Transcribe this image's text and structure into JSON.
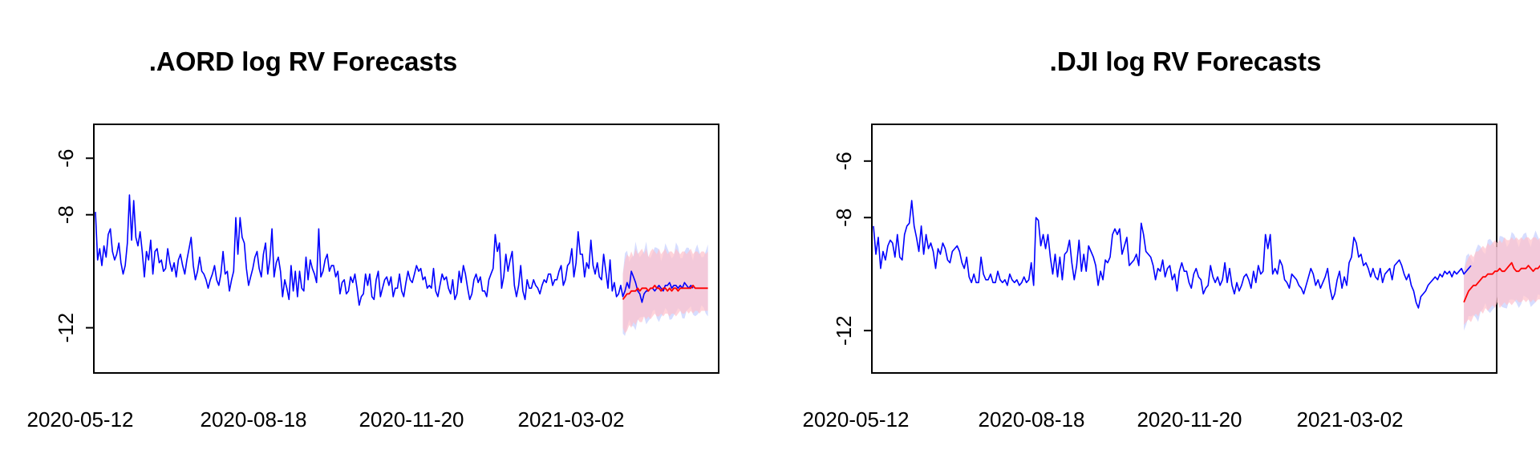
{
  "colors": {
    "observed": "#0000ff",
    "forecast_mean": "#ff0000",
    "band_forecast": "#ffc0cb",
    "band_alt": "#c8d2ff"
  },
  "chart_data": [
    {
      "type": "line",
      "title": ".AORD log RV Forecasts",
      "xlabel": "",
      "ylabel": "",
      "x_tick_labels": [
        "2020-05-12",
        "2020-08-18",
        "2020-11-20",
        "2021-03-02"
      ],
      "y_ticks": [
        -6,
        -8,
        -12
      ],
      "y_tick_labels": [
        "-6",
        "-8",
        "-12"
      ],
      "ylim": [
        -13.6,
        -4.8
      ],
      "grid": false,
      "series": [
        {
          "role": "observed",
          "values": [
            -7.9,
            -9.6,
            -9.2,
            -9.8,
            -9.1,
            -9.5,
            -8.7,
            -8.5,
            -9.3,
            -9.6,
            -9.4,
            -9.0,
            -9.7,
            -10.1,
            -9.8,
            -9.0,
            -7.3,
            -8.9,
            -7.5,
            -8.8,
            -9.1,
            -8.6,
            -9.3,
            -10.2,
            -9.3,
            -9.6,
            -8.9,
            -10.1,
            -9.3,
            -9.2,
            -9.7,
            -9.6,
            -10.0,
            -9.9,
            -9.2,
            -9.7,
            -10.0,
            -9.7,
            -10.2,
            -9.6,
            -9.4,
            -9.8,
            -10.1,
            -9.6,
            -9.2,
            -8.8,
            -9.8,
            -10.3,
            -10.0,
            -9.5,
            -10.0,
            -10.1,
            -10.3,
            -10.6,
            -10.3,
            -10.1,
            -9.8,
            -10.3,
            -10.5,
            -10.1,
            -9.3,
            -10.1,
            -10.0,
            -10.7,
            -10.3,
            -10.0,
            -8.1,
            -9.4,
            -8.1,
            -8.8,
            -9.0,
            -9.9,
            -10.5,
            -10.2,
            -9.9,
            -9.5,
            -9.3,
            -9.9,
            -10.2,
            -9.4,
            -9.0,
            -10.1,
            -9.6,
            -8.5,
            -10.2,
            -9.7,
            -9.5,
            -10.0,
            -10.9,
            -10.3,
            -10.6,
            -11.0,
            -9.8,
            -10.7,
            -10.0,
            -10.9,
            -10.0,
            -10.6,
            -10.7,
            -9.5,
            -10.3,
            -9.6,
            -9.9,
            -10.1,
            -10.4,
            -8.5,
            -10.2,
            -10.0,
            -9.6,
            -9.4,
            -10.0,
            -9.8,
            -9.8,
            -10.2,
            -10.0,
            -10.8,
            -10.4,
            -10.3,
            -10.8,
            -10.7,
            -10.2,
            -10.4,
            -10.1,
            -10.6,
            -11.2,
            -10.9,
            -10.8,
            -10.1,
            -10.5,
            -10.1,
            -10.9,
            -11.0,
            -10.3,
            -10.0,
            -10.9,
            -10.6,
            -10.3,
            -10.2,
            -10.5,
            -10.2,
            -10.9,
            -10.6,
            -10.6,
            -10.1,
            -10.7,
            -10.9,
            -10.4,
            -10.0,
            -10.3,
            -10.4,
            -10.1,
            -9.8,
            -10.0,
            -9.9,
            -10.3,
            -10.2,
            -10.6,
            -10.5,
            -10.6,
            -9.9,
            -10.7,
            -10.9,
            -10.5,
            -10.1,
            -10.3,
            -10.2,
            -10.6,
            -10.8,
            -10.3,
            -11.0,
            -10.8,
            -10.0,
            -10.4,
            -9.8,
            -10.1,
            -10.6,
            -11.0,
            -10.8,
            -10.3,
            -10.1,
            -10.4,
            -10.2,
            -10.7,
            -10.7,
            -10.9,
            -10.3,
            -10.1,
            -9.9,
            -8.7,
            -9.3,
            -9.0,
            -10.6,
            -10.2,
            -9.4,
            -10.0,
            -9.6,
            -9.3,
            -10.5,
            -10.9,
            -10.5,
            -9.8,
            -10.7,
            -11.0,
            -10.3,
            -10.6,
            -10.6,
            -10.3,
            -10.5,
            -10.6,
            -10.8,
            -10.5,
            -10.3,
            -10.4,
            -10.1,
            -10.1,
            -10.5,
            -10.3,
            -10.3,
            -10.0,
            -9.8,
            -10.5,
            -10.3,
            -9.8,
            -9.7,
            -9.2,
            -10.2,
            -9.7,
            -8.6,
            -9.4,
            -9.4,
            -10.2,
            -9.7,
            -9.9,
            -8.9,
            -9.8,
            -10.1,
            -9.7,
            -10.2,
            -10.3,
            -9.4,
            -10.0,
            -10.6,
            -9.6,
            -10.7,
            -10.4,
            -10.9,
            -10.8,
            -10.5,
            -10.9,
            -10.7,
            -10.4,
            -10.6,
            -10.0,
            -10.2,
            -10.4,
            -10.7,
            -10.8,
            -11.1,
            -10.8,
            -10.7,
            -10.7,
            -10.6,
            -10.6,
            -10.7,
            -10.6,
            -10.5,
            -10.6,
            -10.7,
            -10.5,
            -10.5,
            -10.4,
            -10.6,
            -10.5,
            -10.5,
            -10.6,
            -10.5,
            -10.6,
            -10.4,
            -10.5,
            -10.6,
            -10.5,
            -10.6
          ]
        },
        {
          "role": "forecast",
          "start_index": 248,
          "values": [
            -11.0,
            -10.9,
            -10.8,
            -10.8,
            -10.7,
            -10.7,
            -10.7,
            -10.6,
            -10.7,
            -10.6,
            -10.6,
            -10.6,
            -10.7,
            -10.6,
            -10.6,
            -10.5,
            -10.6,
            -10.6,
            -10.7,
            -10.6,
            -10.6,
            -10.7,
            -10.6,
            -10.7,
            -10.6,
            -10.6,
            -10.7,
            -10.6,
            -10.6,
            -10.6,
            -10.6,
            -10.6,
            -10.6,
            -10.5,
            -10.6,
            -10.6,
            -10.6,
            -10.6,
            -10.6,
            -10.6,
            -10.6
          ],
          "lower": [
            -12.0,
            -12.2,
            -12.1,
            -11.9,
            -12.0,
            -11.8,
            -11.9,
            -11.7,
            -11.8,
            -11.8,
            -11.6,
            -11.7,
            -11.6,
            -11.7,
            -11.6,
            -11.5,
            -11.6,
            -11.6,
            -11.5,
            -11.6,
            -11.5,
            -11.5,
            -11.6,
            -11.5,
            -11.5,
            -11.6,
            -11.5,
            -11.4,
            -11.5,
            -11.5,
            -11.4,
            -11.5,
            -11.4,
            -11.5,
            -11.4,
            -11.4,
            -11.5,
            -11.4,
            -11.4,
            -11.4,
            -11.4
          ],
          "upper": [
            -10.1,
            -9.6,
            -9.4,
            -9.5,
            -9.3,
            -9.5,
            -9.2,
            -9.4,
            -9.3,
            -9.2,
            -9.4,
            -9.2,
            -9.5,
            -9.3,
            -9.2,
            -9.3,
            -9.4,
            -9.2,
            -9.4,
            -9.3,
            -9.2,
            -9.4,
            -9.3,
            -9.3,
            -9.4,
            -9.2,
            -9.3,
            -9.4,
            -9.3,
            -9.3,
            -9.4,
            -9.3,
            -9.2,
            -9.4,
            -9.3,
            -9.3,
            -9.4,
            -9.3,
            -9.3,
            -9.4,
            -9.3
          ]
        }
      ]
    },
    {
      "type": "line",
      "title": ".DJI log RV Forecasts",
      "xlabel": "",
      "ylabel": "",
      "x_tick_labels": [
        "2020-05-12",
        "2020-08-18",
        "2020-11-20",
        "2021-03-02"
      ],
      "y_ticks": [
        -6,
        -8,
        -12
      ],
      "y_tick_labels": [
        "-6",
        "-8",
        "-12"
      ],
      "ylim": [
        -13.5,
        -4.7
      ],
      "grid": false,
      "series": [
        {
          "role": "observed",
          "values": [
            -8.3,
            -9.3,
            -8.7,
            -9.8,
            -9.2,
            -9.5,
            -9.0,
            -8.8,
            -8.9,
            -9.4,
            -8.6,
            -9.4,
            -9.5,
            -8.6,
            -8.3,
            -8.2,
            -7.4,
            -8.3,
            -8.7,
            -9.2,
            -8.3,
            -9.3,
            -8.6,
            -9.1,
            -8.9,
            -9.2,
            -9.8,
            -9.1,
            -9.3,
            -8.9,
            -9.1,
            -9.5,
            -9.6,
            -9.2,
            -9.1,
            -9.0,
            -9.2,
            -9.6,
            -9.8,
            -9.4,
            -10.1,
            -10.3,
            -10.0,
            -10.3,
            -10.3,
            -9.4,
            -10.0,
            -10.2,
            -10.2,
            -10.0,
            -10.3,
            -10.3,
            -9.9,
            -10.2,
            -10.3,
            -10.2,
            -10.4,
            -10.0,
            -10.2,
            -10.3,
            -10.2,
            -10.4,
            -10.3,
            -10.1,
            -10.3,
            -10.2,
            -9.6,
            -10.4,
            -8.0,
            -8.1,
            -9.0,
            -8.6,
            -9.1,
            -8.6,
            -9.4,
            -10.0,
            -9.3,
            -10.1,
            -9.4,
            -10.2,
            -9.3,
            -9.2,
            -8.8,
            -9.6,
            -10.2,
            -9.7,
            -8.8,
            -9.9,
            -9.3,
            -9.9,
            -9.0,
            -9.2,
            -9.4,
            -9.7,
            -10.4,
            -9.9,
            -10.2,
            -9.5,
            -9.6,
            -9.4,
            -8.6,
            -8.4,
            -8.6,
            -8.4,
            -9.3,
            -9.0,
            -8.7,
            -9.7,
            -9.6,
            -9.5,
            -9.3,
            -9.7,
            -8.2,
            -8.6,
            -9.2,
            -9.3,
            -9.4,
            -9.7,
            -10.2,
            -9.8,
            -9.9,
            -9.5,
            -10.1,
            -9.8,
            -9.7,
            -10.2,
            -10.0,
            -10.6,
            -9.9,
            -9.6,
            -9.9,
            -9.9,
            -10.3,
            -10.5,
            -10.0,
            -9.8,
            -10.1,
            -10.2,
            -10.7,
            -10.5,
            -10.4,
            -9.7,
            -10.1,
            -10.3,
            -10.1,
            -10.4,
            -10.2,
            -9.6,
            -10.3,
            -9.8,
            -10.4,
            -10.7,
            -10.3,
            -10.6,
            -10.4,
            -10.1,
            -10.0,
            -10.2,
            -10.5,
            -9.9,
            -10.3,
            -9.7,
            -10.0,
            -9.9,
            -8.6,
            -9.1,
            -8.6,
            -10.0,
            -9.8,
            -10.0,
            -9.5,
            -9.7,
            -10.2,
            -10.3,
            -10.5,
            -10.0,
            -10.1,
            -10.2,
            -10.4,
            -10.5,
            -10.7,
            -10.4,
            -10.1,
            -9.8,
            -10.0,
            -10.4,
            -10.2,
            -10.5,
            -10.3,
            -10.1,
            -9.8,
            -10.5,
            -10.9,
            -10.7,
            -10.2,
            -9.9,
            -10.5,
            -10.1,
            -10.4,
            -9.6,
            -9.4,
            -8.7,
            -8.9,
            -9.4,
            -9.3,
            -9.7,
            -9.6,
            -9.8,
            -10.1,
            -9.8,
            -10.1,
            -10.2,
            -9.8,
            -10.3,
            -10.0,
            -9.9,
            -9.8,
            -10.2,
            -9.7,
            -9.6,
            -9.5,
            -9.7,
            -10.0,
            -10.2,
            -10.0,
            -10.4,
            -10.6,
            -11.0,
            -11.2,
            -10.8,
            -10.7,
            -10.6,
            -10.4,
            -10.3,
            -10.2,
            -10.1,
            -10.2,
            -10.0,
            -10.1,
            -9.9,
            -10.0,
            -9.9,
            -10.1,
            -9.9,
            -10.0,
            -9.9,
            -9.8,
            -10.0,
            -9.9,
            -9.8,
            -9.7
          ]
        },
        {
          "role": "forecast",
          "start_index": 247,
          "values": [
            -11.0,
            -10.8,
            -10.6,
            -10.5,
            -10.4,
            -10.4,
            -10.3,
            -10.2,
            -10.1,
            -10.1,
            -10.0,
            -10.0,
            -10.0,
            -9.9,
            -9.9,
            -9.8,
            -9.9,
            -9.9,
            -9.8,
            -9.7,
            -9.6,
            -9.8,
            -9.9,
            -9.9,
            -9.8,
            -9.8,
            -9.8,
            -9.7,
            -9.8,
            -9.9,
            -9.8,
            -9.8,
            -9.7,
            -9.8,
            -9.8,
            -9.8,
            -9.7,
            -9.7,
            -9.8,
            -9.7,
            -9.7,
            -9.7
          ],
          "lower": [
            -11.8,
            -11.7,
            -11.6,
            -11.7,
            -11.5,
            -11.4,
            -11.5,
            -11.3,
            -11.4,
            -11.2,
            -11.3,
            -11.2,
            -11.1,
            -11.2,
            -11.0,
            -11.2,
            -11.1,
            -11.0,
            -11.1,
            -11.0,
            -11.1,
            -11.0,
            -10.9,
            -11.0,
            -11.0,
            -10.9,
            -11.0,
            -10.9,
            -11.0,
            -10.9,
            -11.0,
            -10.9,
            -10.9,
            -11.0,
            -10.9,
            -10.9,
            -11.0,
            -10.9,
            -10.9,
            -11.0,
            -10.9,
            -10.9
          ],
          "upper": [
            -9.9,
            -9.6,
            -9.4,
            -9.3,
            -9.4,
            -9.2,
            -9.2,
            -9.1,
            -9.0,
            -9.1,
            -8.9,
            -9.0,
            -8.9,
            -8.8,
            -8.9,
            -8.8,
            -8.9,
            -8.7,
            -8.8,
            -8.8,
            -8.7,
            -8.8,
            -8.7,
            -8.8,
            -8.7,
            -8.8,
            -8.7,
            -8.7,
            -8.8,
            -8.7,
            -8.7,
            -8.8,
            -8.7,
            -8.7,
            -8.8,
            -8.7,
            -8.7,
            -8.8,
            -8.7,
            -8.7,
            -8.8,
            -8.7
          ]
        }
      ]
    }
  ]
}
